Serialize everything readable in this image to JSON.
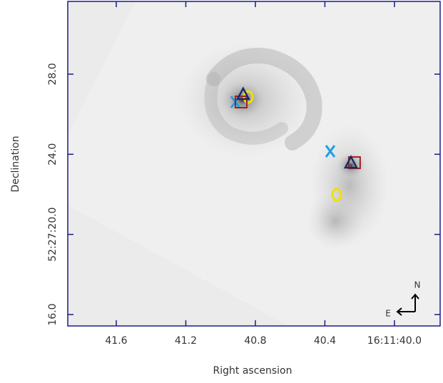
{
  "chart_data": {
    "type": "scatter",
    "xlabel": "Right ascension",
    "ylabel": "Declination",
    "xlim": [
      41.879,
      39.737
    ],
    "ylim": [
      15.43,
      31.63
    ],
    "xticks": [
      41.6,
      41.2,
      40.8,
      40.4,
      {
        "value": 40.0,
        "label": "16:11:40.0"
      }
    ],
    "yticks": [
      {
        "value": 28,
        "label": "28.0"
      },
      {
        "value": 24,
        "label": "24.0"
      },
      {
        "value": 20,
        "label": "52:27:20.0"
      },
      {
        "value": 16,
        "label": "16.0"
      }
    ],
    "series": [
      {
        "marker": "x",
        "color": "#1ea0e6",
        "x": [
          40.915,
          40.369
        ],
        "y": [
          26.61,
          24.15
        ]
      },
      {
        "marker": "o",
        "color": "#f0e000",
        "x": [
          40.841,
          40.332
        ],
        "y": [
          26.86,
          21.98
        ]
      },
      {
        "marker": "square",
        "color": "#a02020",
        "x": [
          40.882,
          40.23
        ],
        "y": [
          26.61,
          23.58
        ]
      },
      {
        "marker": "triangle",
        "color": "#1a2a6c",
        "x": [
          40.87,
          40.25
        ],
        "y": [
          26.97,
          23.55
        ]
      }
    ],
    "compass": {
      "north": "N",
      "east": "E"
    }
  }
}
